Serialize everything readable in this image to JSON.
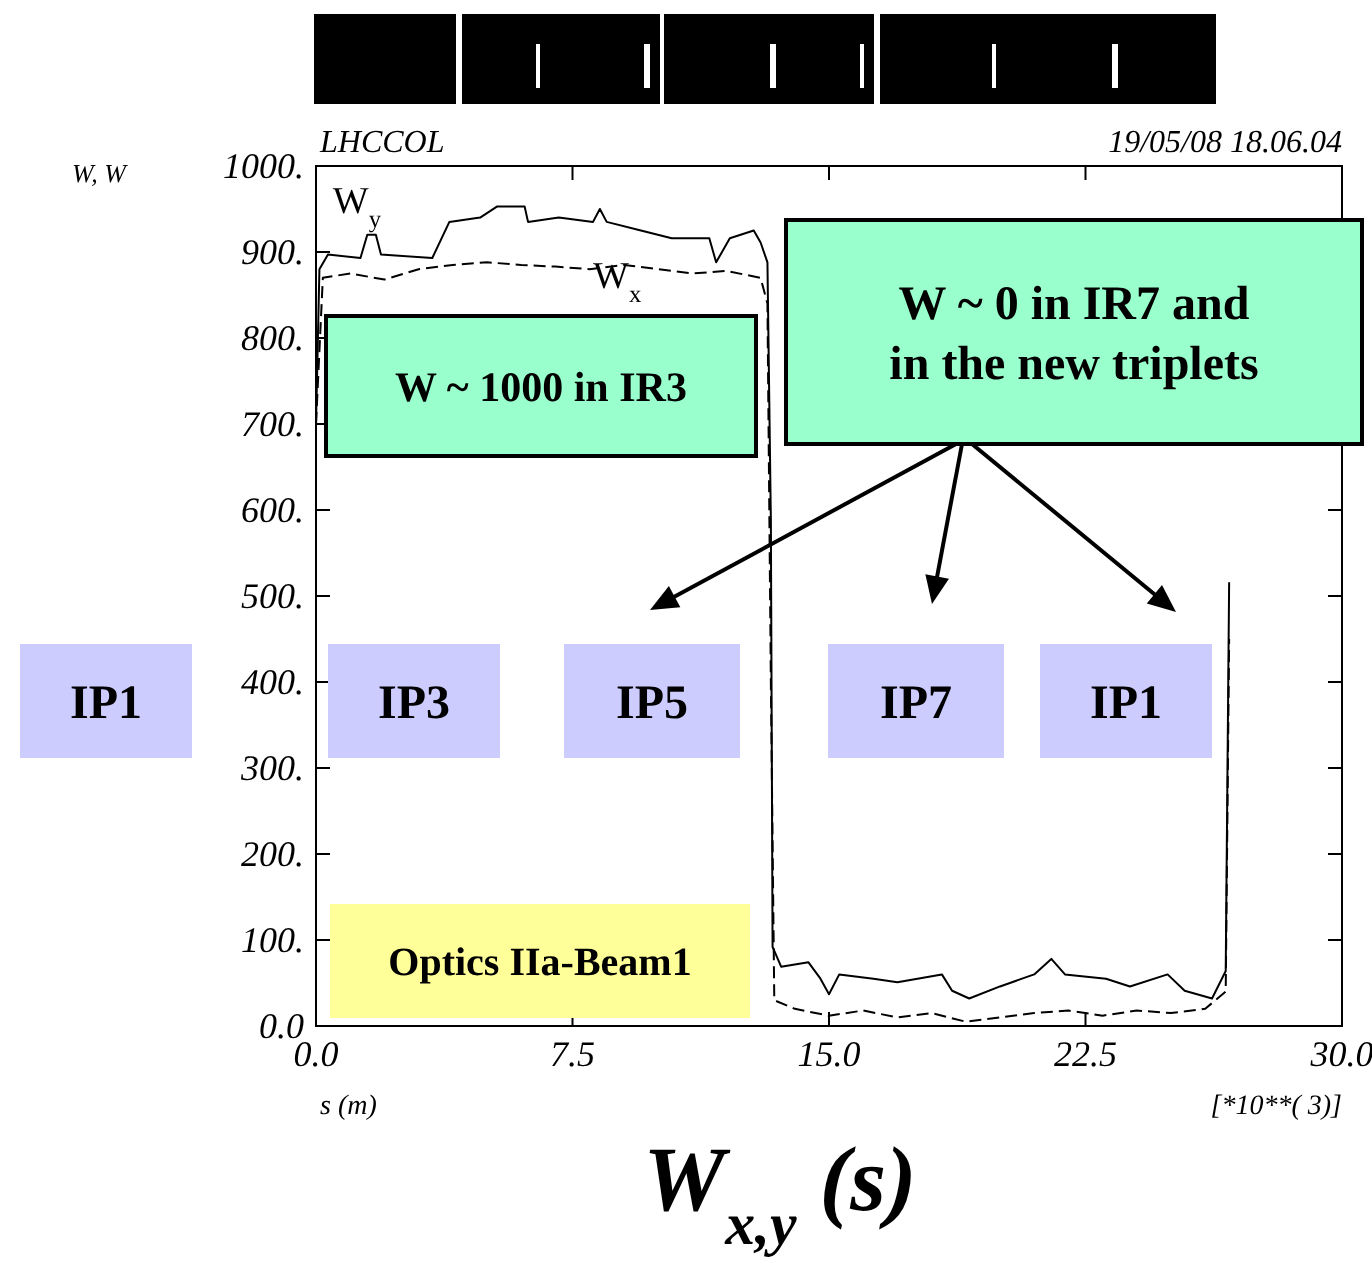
{
  "chart_data": {
    "type": "line",
    "title": "W$_{x,y}$ (s)",
    "xlabel": "s (m)",
    "ylabel": "W, W",
    "xlim": [
      0,
      30
    ],
    "ylim": [
      0,
      1000
    ],
    "xticks": [
      {
        "value": 0,
        "label": "0.0"
      },
      {
        "value": 7.5,
        "label": "7.5"
      },
      {
        "value": 15,
        "label": "15.0"
      },
      {
        "value": 22.5,
        "label": "22.5"
      },
      {
        "value": 30,
        "label": "30.0"
      }
    ],
    "yticks": [
      {
        "value": 0,
        "label": "0.0"
      },
      {
        "value": 100,
        "label": "100."
      },
      {
        "value": 200,
        "label": "200."
      },
      {
        "value": 300,
        "label": "300."
      },
      {
        "value": 400,
        "label": "400."
      },
      {
        "value": 500,
        "label": "500."
      },
      {
        "value": 600,
        "label": "600."
      },
      {
        "value": 700,
        "label": "700."
      },
      {
        "value": 800,
        "label": "800."
      },
      {
        "value": 900,
        "label": "900."
      },
      {
        "value": 1000,
        "label": "1000."
      }
    ],
    "grid": false,
    "marker": "none",
    "series": [
      {
        "name": "W$_{y}$",
        "color": "#000000",
        "line_style": "solid",
        "x": [
          0,
          0.1,
          0.35,
          1.3,
          1.5,
          1.75,
          1.9,
          3.4,
          3.9,
          4.8,
          5.3,
          6.1,
          6.2,
          7.1,
          8.1,
          8.3,
          8.5,
          9.5,
          10.4,
          11.5,
          11.7,
          12.1,
          12.8,
          13,
          13.2,
          13.3,
          13.35,
          13.6,
          14.4,
          14.75,
          15,
          15.3,
          16.3,
          17,
          18.3,
          18.6,
          19.1,
          20,
          21,
          21.5,
          21.9,
          23.1,
          23.8,
          24.9,
          25.4,
          26.2,
          26.6,
          26.7
        ],
        "values": [
          700,
          880,
          897,
          893,
          920,
          920,
          897,
          893,
          935,
          940,
          953,
          953,
          935,
          940,
          935,
          950,
          935,
          925,
          916,
          916,
          888,
          916,
          925,
          911,
          888,
          589,
          92,
          69,
          74,
          55,
          37,
          60,
          55,
          51,
          60,
          41,
          32,
          46,
          60,
          78,
          60,
          55,
          46,
          60,
          41,
          32,
          64,
          516
        ]
      },
      {
        "name": "W$_{x}$",
        "color": "#000000",
        "line_style": "dashed",
        "x": [
          0,
          0.2,
          1,
          2,
          3,
          4,
          5,
          6,
          7,
          8,
          9,
          10,
          11,
          12,
          13,
          13.2,
          13.3,
          13.4,
          14,
          15,
          16,
          17,
          18,
          19,
          20,
          21,
          22,
          23,
          24,
          25,
          26,
          26.6,
          26.7
        ],
        "values": [
          700,
          870,
          875,
          868,
          880,
          885,
          888,
          885,
          883,
          880,
          885,
          880,
          875,
          878,
          870,
          840,
          400,
          30,
          20,
          12,
          18,
          10,
          15,
          5,
          10,
          15,
          18,
          12,
          18,
          15,
          20,
          40,
          450
        ]
      }
    ],
    "annotations": [
      "LHCCOL",
      "19/05/08 18.06.04",
      "[*10**( 3)]",
      "W ~ 1000 in IR3",
      "W ~ 0 in IR7 and in the new triplets",
      "IP1",
      "IP3",
      "IP5",
      "IP7",
      "IP1",
      "Optics IIa-Beam1"
    ]
  }
}
